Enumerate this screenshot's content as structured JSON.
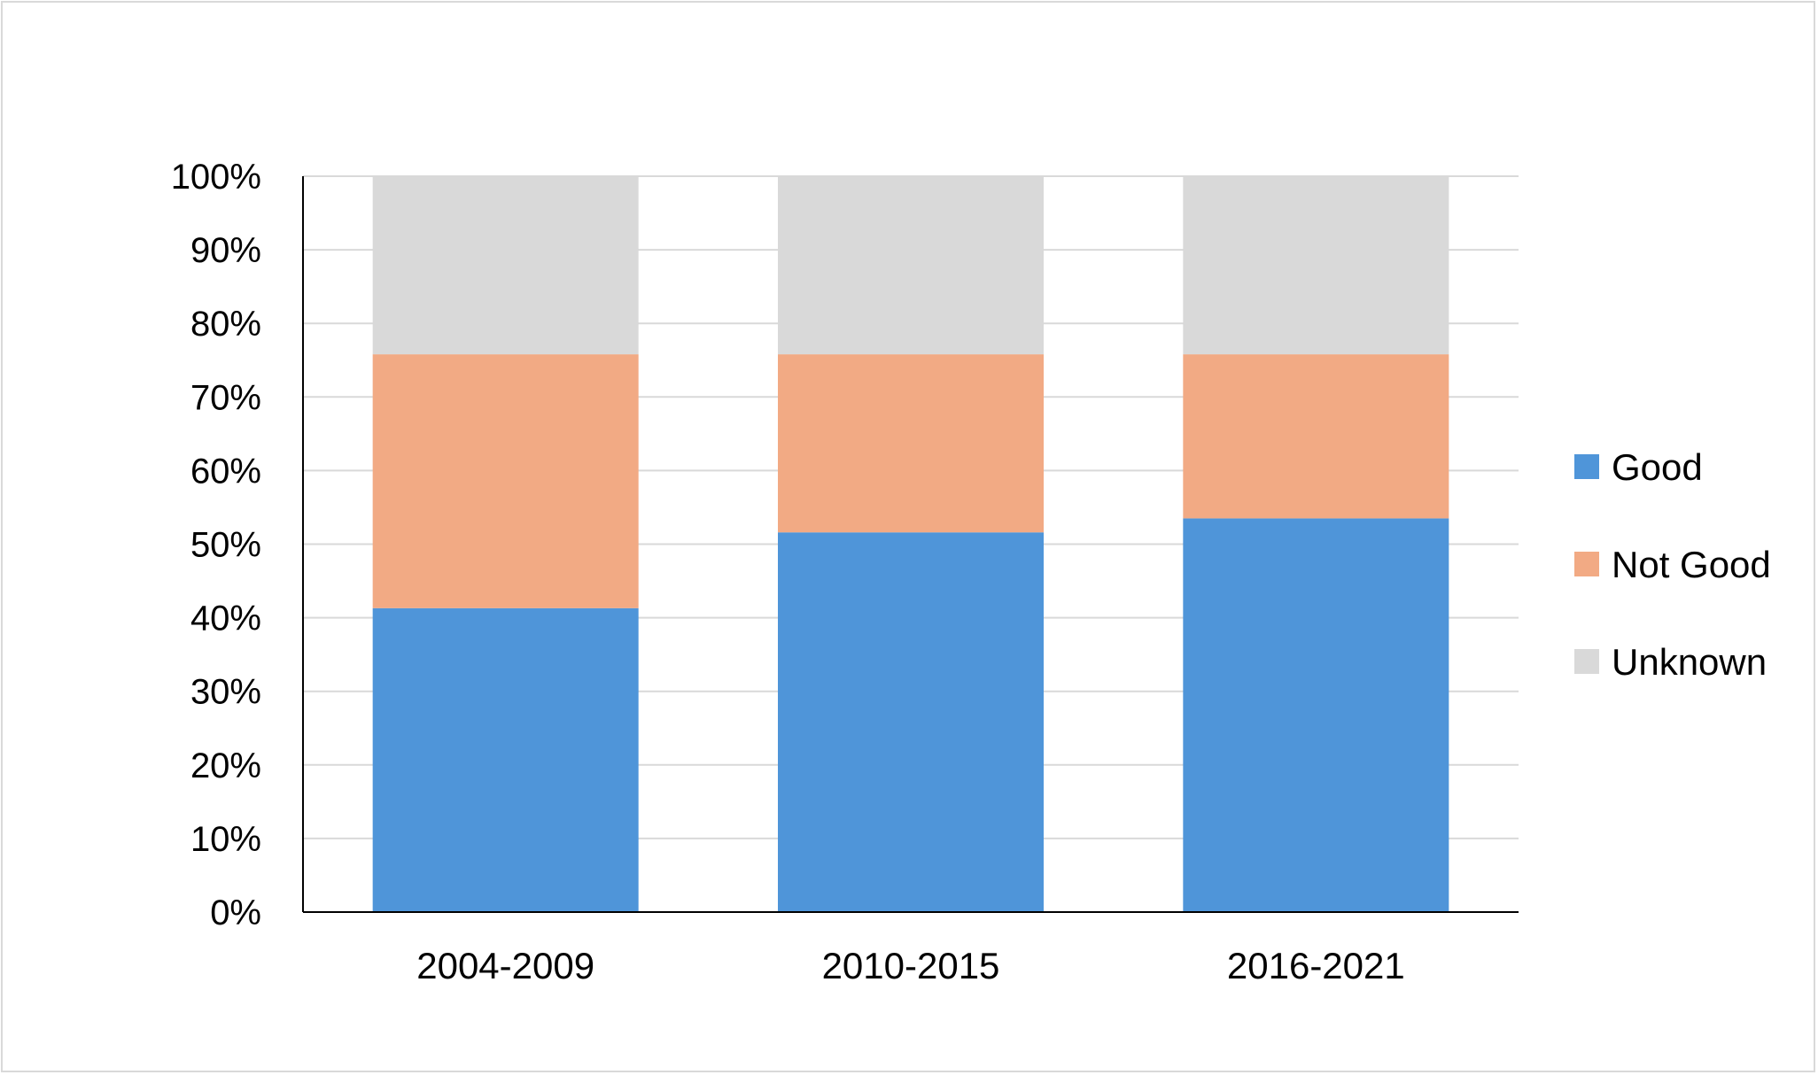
{
  "chart_data": {
    "type": "bar",
    "stacked": true,
    "percent_stacked": true,
    "categories": [
      "2004-2009",
      "2010-2015",
      "2016-2021"
    ],
    "series": [
      {
        "name": "Good",
        "values": [
          41.3,
          51.6,
          53.5
        ],
        "color": "#4f95d9"
      },
      {
        "name": "Not Good",
        "values": [
          34.5,
          24.2,
          22.3
        ],
        "color": "#f2aa84"
      },
      {
        "name": "Unknown",
        "values": [
          24.2,
          24.2,
          24.2
        ],
        "color": "#d9d9d9"
      }
    ],
    "ylim": [
      0,
      100
    ],
    "yticks": [
      0,
      10,
      20,
      30,
      40,
      50,
      60,
      70,
      80,
      90,
      100
    ],
    "ytick_labels": [
      "0%",
      "10%",
      "20%",
      "30%",
      "40%",
      "50%",
      "60%",
      "70%",
      "80%",
      "90%",
      "100%"
    ],
    "grid": true,
    "legend": "right",
    "title": "",
    "xlabel": "",
    "ylabel": ""
  }
}
